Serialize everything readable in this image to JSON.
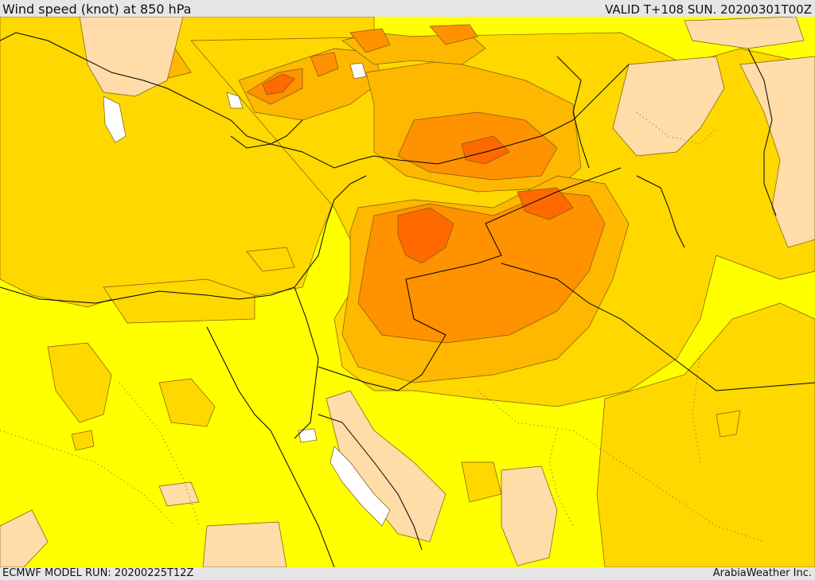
{
  "header": {
    "title": "Wind speed (knot) at 850 hPa",
    "valid_time": "VALID T+108 SUN. 20200301T00Z"
  },
  "footer": {
    "model_run": "ECMWF MODEL RUN: 20200225T12Z",
    "credit": "ArabiaWeather Inc."
  },
  "map": {
    "region": "Eastern Mediterranean / Levant / Arabian Peninsula",
    "fill_palette": {
      "calm": "#ffdca8",
      "light": "#ffff00",
      "moderate": "#ffd800",
      "fresh": "#ffb800",
      "strong": "#ff9200",
      "very_strong": "#ff6a00",
      "water_white": "#ffffff"
    },
    "contour_color": "#7a5a10",
    "border_color": "#000000"
  }
}
